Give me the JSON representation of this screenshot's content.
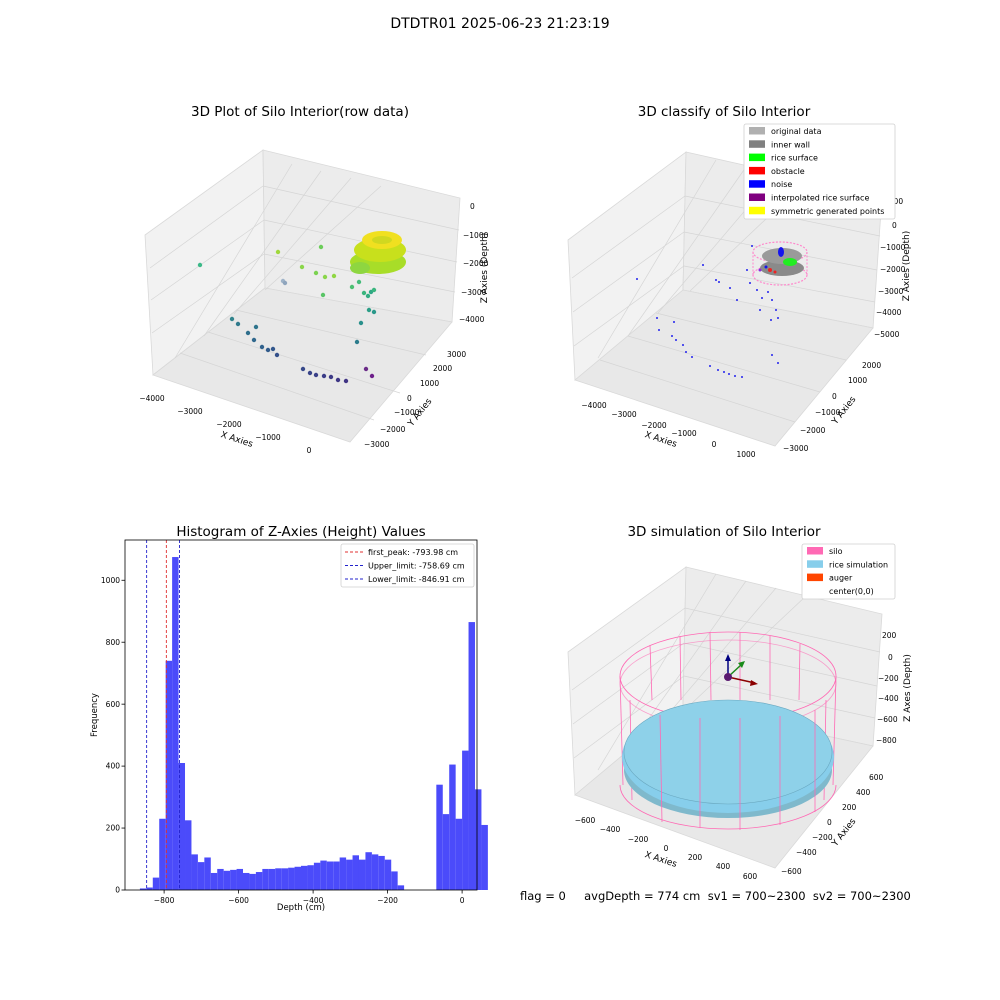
{
  "suptitle": "DTDTR01 2025-06-23 21:23:19",
  "footer": "flag = 0     avgDepth = 774 cm  sv1 = 700~2300  sv2 = 700~2300",
  "colors": {
    "hist_bar": "#4b4bfa",
    "first_peak": "#e03030",
    "limits": "#2222cc",
    "silo": "#ff69b4",
    "rice": "#87ceeb",
    "auger": "#ff4500",
    "pane": "#f2f2f2",
    "grid": "#d8d8d8"
  },
  "panel1": {
    "title": "3D Plot of Silo Interior(row data)",
    "xlabel": "X Axies",
    "ylabel": "Y Axies",
    "zlabel": "Z Axies (Depth)",
    "xticks": [
      "−4000",
      "−3000",
      "−2000",
      "−1000",
      "0"
    ],
    "yticks": [
      "−3000",
      "−2000",
      "−1000",
      "0",
      "1000",
      "2000",
      "3000"
    ],
    "zticks": [
      "0",
      "−1000",
      "−2000",
      "−3000",
      "−4000"
    ]
  },
  "panel2": {
    "title": "3D classify of Silo Interior",
    "xlabel": "X Axies",
    "ylabel": "Y Axies",
    "zlabel": "Z Axies (Depth)",
    "xticks": [
      "−4000",
      "−3000",
      "−2000",
      "−1000",
      "0",
      "1000"
    ],
    "yticks": [
      "−3000",
      "−2000",
      "−1000",
      "0",
      "1000",
      "2000"
    ],
    "zticks": [
      "1000",
      "0",
      "−1000",
      "−2000",
      "−3000",
      "−4000",
      "−5000"
    ],
    "legend": [
      {
        "label": "original data",
        "color": "#b0b0b0"
      },
      {
        "label": "inner wall",
        "color": "#808080"
      },
      {
        "label": "rice surface",
        "color": "#00ff00"
      },
      {
        "label": "obstacle",
        "color": "#ff0000"
      },
      {
        "label": "noise",
        "color": "#0000ff"
      },
      {
        "label": "interpolated rice surface",
        "color": "#800080"
      },
      {
        "label": "symmetric generated points",
        "color": "#ffff00"
      }
    ]
  },
  "panel4": {
    "title": "3D simulation of Silo Interior",
    "xlabel": "X Axies",
    "ylabel": "Y Axies",
    "zlabel": "Z Axes (Depth)",
    "xticks": [
      "−600",
      "−400",
      "−200",
      "0",
      "200",
      "400",
      "600"
    ],
    "yticks": [
      "−600",
      "−400",
      "−200",
      "0",
      "200",
      "400",
      "600"
    ],
    "zticks": [
      "200",
      "0",
      "−200",
      "−400",
      "−600",
      "−800"
    ],
    "legend": [
      {
        "label": "silo",
        "color": "#ff69b4"
      },
      {
        "label": "rice simulation",
        "color": "#87ceeb"
      },
      {
        "label": "auger",
        "color": "#ff4500"
      },
      {
        "label": "center(0,0)",
        "color": ""
      }
    ]
  },
  "chart_data": {
    "type": "bar",
    "title": "Histogram of Z-Axies (Height) Values",
    "xlabel": "Depth (cm)",
    "ylabel": "Frequency",
    "xlim": [
      -905,
      40
    ],
    "ylim": [
      0,
      1130
    ],
    "xticks": [
      -800,
      -600,
      -400,
      -200,
      0
    ],
    "xtick_labels": [
      "−800",
      "−600",
      "−400",
      "−200",
      "0"
    ],
    "yticks": [
      0,
      200,
      400,
      600,
      800,
      1000
    ],
    "bin_start": -865,
    "bin_width": 17.3,
    "values": [
      5,
      8,
      40,
      230,
      740,
      1075,
      410,
      225,
      115,
      90,
      105,
      55,
      68,
      62,
      65,
      68,
      55,
      52,
      58,
      68,
      68,
      70,
      70,
      72,
      75,
      78,
      80,
      88,
      95,
      92,
      92,
      105,
      98,
      112,
      98,
      122,
      115,
      110,
      98,
      60,
      15,
      0,
      0,
      0,
      0,
      0,
      340,
      245,
      405,
      230,
      450,
      865,
      325,
      210
    ],
    "vlines": [
      {
        "label": "first_peak: -793.98 cm",
        "x": -793.98,
        "style": "dashed",
        "color": "#e03030"
      },
      {
        "label": "Upper_limit: -758.69 cm",
        "x": -758.69,
        "style": "dashed",
        "color": "#2222cc"
      },
      {
        "label": "Lower_limit: -846.91 cm",
        "x": -846.91,
        "style": "dashed",
        "color": "#2222cc"
      }
    ]
  }
}
